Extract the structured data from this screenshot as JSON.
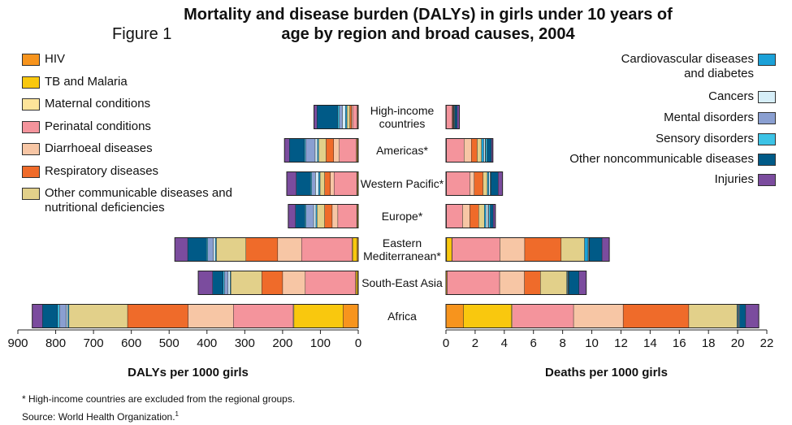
{
  "figure_label": "Figure 1",
  "title": "Mortality and disease burden (DALYs) in girls under 10 years of age by region and broad causes, 2004",
  "footnote": "* High-income countries are excluded from the regional groups.",
  "source": "Source: World Health Organization.",
  "source_ref": "1",
  "chart_data": [
    {
      "type": "bar",
      "orientation": "horizontal",
      "stacked": true,
      "x_label": "DALYs per 1000 girls",
      "categories": [
        "High-income countries",
        "Americas*",
        "Western Pacific*",
        "Europe*",
        "Eastern Mediterranean*",
        "South-East Asia",
        "Africa"
      ],
      "xlim": [
        900,
        0
      ],
      "xticks": [
        900,
        800,
        700,
        600,
        500,
        400,
        300,
        200,
        100,
        0
      ],
      "series": [
        {
          "name": "HIV",
          "color": "#f7941d",
          "values": [
            1,
            2,
            1,
            1,
            3,
            2,
            40
          ]
        },
        {
          "name": "TB and Malaria",
          "color": "#f9c80e",
          "values": [
            1,
            2,
            2,
            2,
            12,
            4,
            130
          ]
        },
        {
          "name": "Maternal conditions",
          "color": "#fde49a",
          "values": [
            1,
            1,
            1,
            1,
            1,
            1,
            2
          ]
        },
        {
          "name": "Perinatal conditions",
          "color": "#f4949c",
          "values": [
            12,
            45,
            60,
            50,
            134,
            133,
            158
          ]
        },
        {
          "name": "Diarrhoeal diseases",
          "color": "#f7c6a5",
          "values": [
            3,
            15,
            10,
            15,
            63,
            60,
            120
          ]
        },
        {
          "name": "Respiratory diseases",
          "color": "#ef6b2a",
          "values": [
            4,
            20,
            15,
            20,
            84,
            55,
            160
          ]
        },
        {
          "name": "Other communicable diseases and nutritional deficiencies",
          "color": "#e2d08a",
          "values": [
            8,
            20,
            12,
            20,
            78,
            82,
            155
          ]
        },
        {
          "name": "Cardiovascular diseases and diabetes",
          "color": "#1ba1d8",
          "values": [
            4,
            3,
            4,
            3,
            3,
            2,
            3
          ]
        },
        {
          "name": "Cancers",
          "color": "#d6eef8",
          "values": [
            8,
            6,
            8,
            6,
            5,
            5,
            4
          ]
        },
        {
          "name": "Mental disorders",
          "color": "#8a9fd1",
          "values": [
            8,
            25,
            10,
            20,
            15,
            10,
            18
          ]
        },
        {
          "name": "Sensory disorders",
          "color": "#3cc3e6",
          "values": [
            4,
            3,
            3,
            3,
            3,
            3,
            5
          ]
        },
        {
          "name": "Other noncommunicable diseases",
          "color": "#005a87",
          "values": [
            55,
            40,
            38,
            25,
            50,
            28,
            40
          ]
        },
        {
          "name": "Injuries",
          "color": "#7b4c9e",
          "values": [
            8,
            13,
            25,
            19,
            34,
            38,
            27
          ]
        }
      ]
    },
    {
      "type": "bar",
      "orientation": "horizontal",
      "stacked": true,
      "x_label": "Deaths per 1000 girls",
      "xlim": [
        0,
        22
      ],
      "xticks": [
        0,
        2,
        4,
        6,
        8,
        10,
        12,
        14,
        16,
        18,
        20,
        22
      ],
      "series": [
        {
          "values": [
            0.01,
            0.01,
            0.01,
            0.01,
            0.05,
            0.02,
            1.2
          ]
        },
        {
          "values": [
            0.01,
            0.02,
            0.02,
            0.02,
            0.35,
            0.05,
            3.3
          ]
        },
        {
          "values": [
            0.01,
            0.01,
            0.01,
            0.01,
            0.02,
            0.01,
            0.05
          ]
        },
        {
          "values": [
            0.4,
            1.2,
            1.6,
            1.1,
            3.28,
            3.6,
            4.2
          ]
        },
        {
          "values": [
            0.02,
            0.5,
            0.3,
            0.5,
            1.7,
            1.7,
            3.4
          ]
        },
        {
          "values": [
            0.03,
            0.4,
            0.6,
            0.6,
            2.5,
            1.1,
            4.5
          ]
        },
        {
          "values": [
            0.03,
            0.3,
            0.3,
            0.4,
            1.6,
            1.8,
            3.3
          ]
        },
        {
          "values": [
            0.02,
            0.15,
            0.1,
            0.1,
            0.25,
            0.05,
            0.05
          ]
        },
        {
          "values": [
            0.03,
            0.1,
            0.1,
            0.15,
            0.05,
            0.05,
            0.05
          ]
        },
        {
          "values": [
            0.05,
            0.03,
            0.02,
            0.05,
            0.02,
            0.02,
            0.05
          ]
        },
        {
          "values": [
            0.01,
            0.1,
            0.02,
            0.1,
            0.03,
            0.02,
            0.05
          ]
        },
        {
          "values": [
            0.15,
            0.3,
            0.5,
            0.2,
            0.85,
            0.7,
            0.4
          ]
        },
        {
          "values": [
            0.15,
            0.1,
            0.3,
            0.15,
            0.5,
            0.5,
            0.9
          ]
        }
      ]
    }
  ]
}
